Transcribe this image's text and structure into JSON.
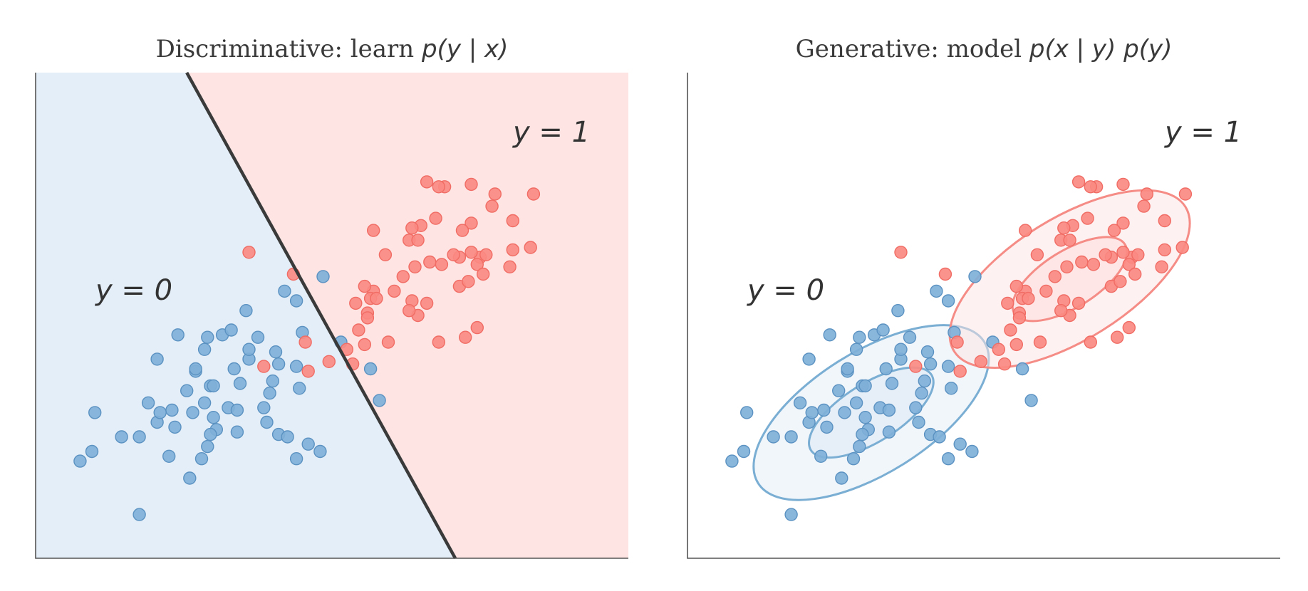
{
  "colors": {
    "class0_fill": "#7fb0d8",
    "class0_edge": "#5b92c2",
    "class0_region": "#e3eef8",
    "class1_fill": "#fa8a82",
    "class1_edge": "#f06c64",
    "class1_region": "#fee4e3",
    "boundary": "#3a3a3a",
    "contour0": "#7aaed3",
    "contour1": "#f58c86"
  },
  "chart_data": [
    {
      "type": "scatter",
      "panel": "left",
      "title": "Discriminative: learn ",
      "title_math": "p(y | x)",
      "class_labels": {
        "class0": "y = 0",
        "class1": "y = 1"
      },
      "xlim": [
        0,
        10
      ],
      "ylim": [
        0,
        10
      ],
      "grid": false,
      "decision_boundary": [
        [
          2.55,
          10.0
        ],
        [
          7.08,
          0.0
        ]
      ],
      "series": [
        {
          "class": "class0",
          "points": [
            [
              4.2,
              5.5
            ],
            [
              1.0,
              3.0
            ],
            [
              0.75,
              2.0
            ],
            [
              1.75,
              2.5
            ],
            [
              1.9,
              3.2
            ],
            [
              2.05,
              2.8
            ],
            [
              2.4,
              4.6
            ],
            [
              2.85,
              4.3
            ],
            [
              2.3,
              3.05
            ],
            [
              2.35,
              2.7
            ],
            [
              2.25,
              2.1
            ],
            [
              2.65,
              3.0
            ],
            [
              2.7,
              3.85
            ],
            [
              2.95,
              3.55
            ],
            [
              3.15,
              4.6
            ],
            [
              3.6,
              4.1
            ],
            [
              3.35,
              3.9
            ],
            [
              3.45,
              3.6
            ],
            [
              3.75,
              4.55
            ],
            [
              3.05,
              2.65
            ],
            [
              3.25,
              3.1
            ],
            [
              3.4,
              3.05
            ],
            [
              3.6,
              4.3
            ],
            [
              3.95,
              3.4
            ],
            [
              3.9,
              2.8
            ],
            [
              4.1,
              2.55
            ],
            [
              3.85,
              3.1
            ],
            [
              3.4,
              2.6
            ],
            [
              4.05,
              4.25
            ],
            [
              4.1,
              4.0
            ],
            [
              4.4,
              3.95
            ],
            [
              3.0,
              3.55
            ],
            [
              2.8,
              2.05
            ],
            [
              2.6,
              1.65
            ],
            [
              2.05,
              4.1
            ],
            [
              1.75,
              0.9
            ],
            [
              2.95,
              2.55
            ],
            [
              2.85,
              3.2
            ],
            [
              4.25,
              2.5
            ],
            [
              4.0,
              3.65
            ],
            [
              4.5,
              4.65
            ],
            [
              4.4,
              5.3
            ],
            [
              4.6,
              2.35
            ],
            [
              1.45,
              2.5
            ],
            [
              0.95,
              2.2
            ],
            [
              2.1,
              3.0
            ],
            [
              3.0,
              2.9
            ],
            [
              4.85,
              5.8
            ],
            [
              4.8,
              2.2
            ],
            [
              4.45,
              3.5
            ],
            [
              5.65,
              3.9
            ],
            [
              5.8,
              3.25
            ],
            [
              5.15,
              4.45
            ],
            [
              4.4,
              2.05
            ],
            [
              2.7,
              3.9
            ],
            [
              2.9,
              4.55
            ],
            [
              3.3,
              4.7
            ],
            [
              3.55,
              5.1
            ],
            [
              2.9,
              2.3
            ],
            [
              2.55,
              3.45
            ]
          ]
        },
        {
          "class": "class1",
          "points": [
            [
              6.9,
              7.65
            ],
            [
              6.8,
              7.65
            ],
            [
              7.35,
              7.7
            ],
            [
              7.75,
              7.5
            ],
            [
              8.4,
              7.5
            ],
            [
              7.7,
              7.25
            ],
            [
              6.75,
              7.0
            ],
            [
              7.35,
              6.9
            ],
            [
              8.05,
              6.95
            ],
            [
              8.05,
              6.35
            ],
            [
              6.5,
              6.85
            ],
            [
              7.5,
              6.2
            ],
            [
              6.35,
              6.8
            ],
            [
              7.2,
              6.75
            ],
            [
              7.35,
              6.3
            ],
            [
              8.0,
              6.0
            ],
            [
              7.15,
              6.2
            ],
            [
              5.7,
              6.75
            ],
            [
              5.9,
              6.25
            ],
            [
              6.3,
              6.55
            ],
            [
              6.4,
              6.0
            ],
            [
              7.05,
              6.25
            ],
            [
              7.45,
              6.05
            ],
            [
              7.6,
              6.25
            ],
            [
              6.65,
              6.1
            ],
            [
              8.35,
              6.4
            ],
            [
              5.7,
              5.5
            ],
            [
              6.2,
              5.8
            ],
            [
              6.05,
              5.5
            ],
            [
              5.65,
              5.35
            ],
            [
              5.55,
              5.6
            ],
            [
              5.75,
              5.35
            ],
            [
              6.35,
              5.3
            ],
            [
              6.6,
              5.25
            ],
            [
              6.8,
              4.45
            ],
            [
              5.4,
              5.25
            ],
            [
              5.6,
              5.05
            ],
            [
              6.45,
              5.0
            ],
            [
              7.15,
              5.6
            ],
            [
              7.3,
              5.7
            ],
            [
              7.45,
              4.75
            ],
            [
              5.55,
              4.4
            ],
            [
              5.35,
              4.0
            ],
            [
              5.25,
              4.3
            ],
            [
              4.95,
              4.05
            ],
            [
              3.6,
              6.3
            ],
            [
              4.35,
              5.85
            ],
            [
              6.6,
              7.75
            ],
            [
              7.25,
              4.55
            ],
            [
              5.95,
              4.45
            ],
            [
              3.85,
              3.95
            ],
            [
              4.55,
              4.45
            ],
            [
              5.6,
              4.95
            ],
            [
              6.3,
              5.1
            ],
            [
              4.6,
              3.85
            ],
            [
              6.45,
              6.55
            ],
            [
              7.55,
              5.85
            ],
            [
              5.45,
              4.7
            ],
            [
              6.85,
              6.05
            ]
          ]
        }
      ]
    },
    {
      "type": "scatter",
      "panel": "right",
      "title": "Generative: model ",
      "title_math": "p(x | y) p(y)",
      "class_labels": {
        "class0": "y = 0",
        "class1": "y = 1"
      },
      "xlim": [
        0,
        10
      ],
      "ylim": [
        0,
        10
      ],
      "grid": false,
      "gaussian_contours": [
        {
          "class": "class0",
          "center": [
            3.1,
            3.0
          ],
          "levels": [
            {
              "rx": 2.25,
              "ry": 1.25,
              "angle_deg": 32
            },
            {
              "rx": 1.2,
              "ry": 0.6,
              "angle_deg": 32
            }
          ]
        },
        {
          "class": "class1",
          "center": [
            6.45,
            5.75
          ],
          "levels": [
            {
              "rx": 2.3,
              "ry": 1.25,
              "angle_deg": 32
            },
            {
              "rx": 1.1,
              "ry": 0.58,
              "angle_deg": 32
            }
          ]
        }
      ]
    }
  ]
}
